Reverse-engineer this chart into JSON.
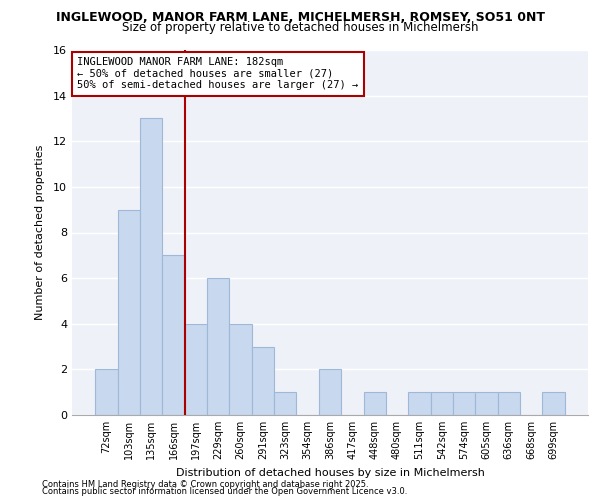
{
  "title_line1": "INGLEWOOD, MANOR FARM LANE, MICHELMERSH, ROMSEY, SO51 0NT",
  "title_line2": "Size of property relative to detached houses in Michelmersh",
  "xlabel": "Distribution of detached houses by size in Michelmersh",
  "ylabel": "Number of detached properties",
  "categories": [
    "72sqm",
    "103sqm",
    "135sqm",
    "166sqm",
    "197sqm",
    "229sqm",
    "260sqm",
    "291sqm",
    "323sqm",
    "354sqm",
    "386sqm",
    "417sqm",
    "448sqm",
    "480sqm",
    "511sqm",
    "542sqm",
    "574sqm",
    "605sqm",
    "636sqm",
    "668sqm",
    "699sqm"
  ],
  "values": [
    2,
    9,
    13,
    7,
    4,
    6,
    4,
    3,
    1,
    0,
    2,
    0,
    1,
    0,
    1,
    1,
    1,
    1,
    1,
    0,
    1
  ],
  "bar_color": "#c8d8ee",
  "bar_edgecolor": "#a0b8d8",
  "subject_line": "INGLEWOOD MANOR FARM LANE: 182sqm",
  "annotation_line2": "← 50% of detached houses are smaller (27)",
  "annotation_line3": "50% of semi-detached houses are larger (27) →",
  "annotation_box_edgecolor": "#aa0000",
  "ylim": [
    0,
    16
  ],
  "yticks": [
    0,
    2,
    4,
    6,
    8,
    10,
    12,
    14,
    16
  ],
  "footnote_line1": "Contains HM Land Registry data © Crown copyright and database right 2025.",
  "footnote_line2": "Contains public sector information licensed under the Open Government Licence v3.0.",
  "plot_bg": "#eef2f8",
  "fig_bg": "#ffffff",
  "grid_color": "#ffffff",
  "vline_color": "#aa0000",
  "vline_x": 3.5
}
